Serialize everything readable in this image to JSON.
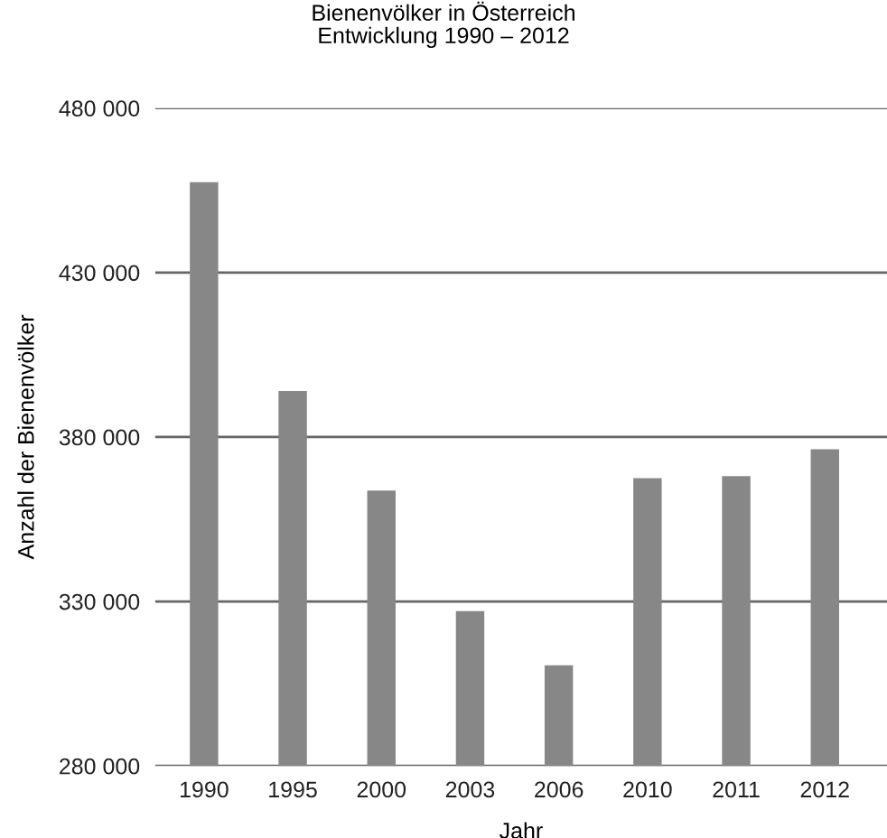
{
  "chart_data": {
    "type": "bar",
    "title": "Bienenvölker in Österreich\nEntwicklung 1990 – 2012",
    "xlabel": "Jahr",
    "ylabel": "Anzahl der Bienenvölker",
    "categories": [
      "1990",
      "1995",
      "2000",
      "2003",
      "2006",
      "2010",
      "2011",
      "2012"
    ],
    "values": [
      457500,
      394000,
      363700,
      327100,
      310600,
      367500,
      368100,
      376300
    ],
    "color": "#878787",
    "ylim": [
      280000,
      480000
    ],
    "yticks": [
      {
        "value": 280000,
        "label": "280 000"
      },
      {
        "value": 330000,
        "label": "330 000"
      },
      {
        "value": 380000,
        "label": "380 000"
      },
      {
        "value": 430000,
        "label": "430 000"
      },
      {
        "value": 480000,
        "label": "480 000"
      }
    ],
    "grid": "y",
    "legend": false
  }
}
